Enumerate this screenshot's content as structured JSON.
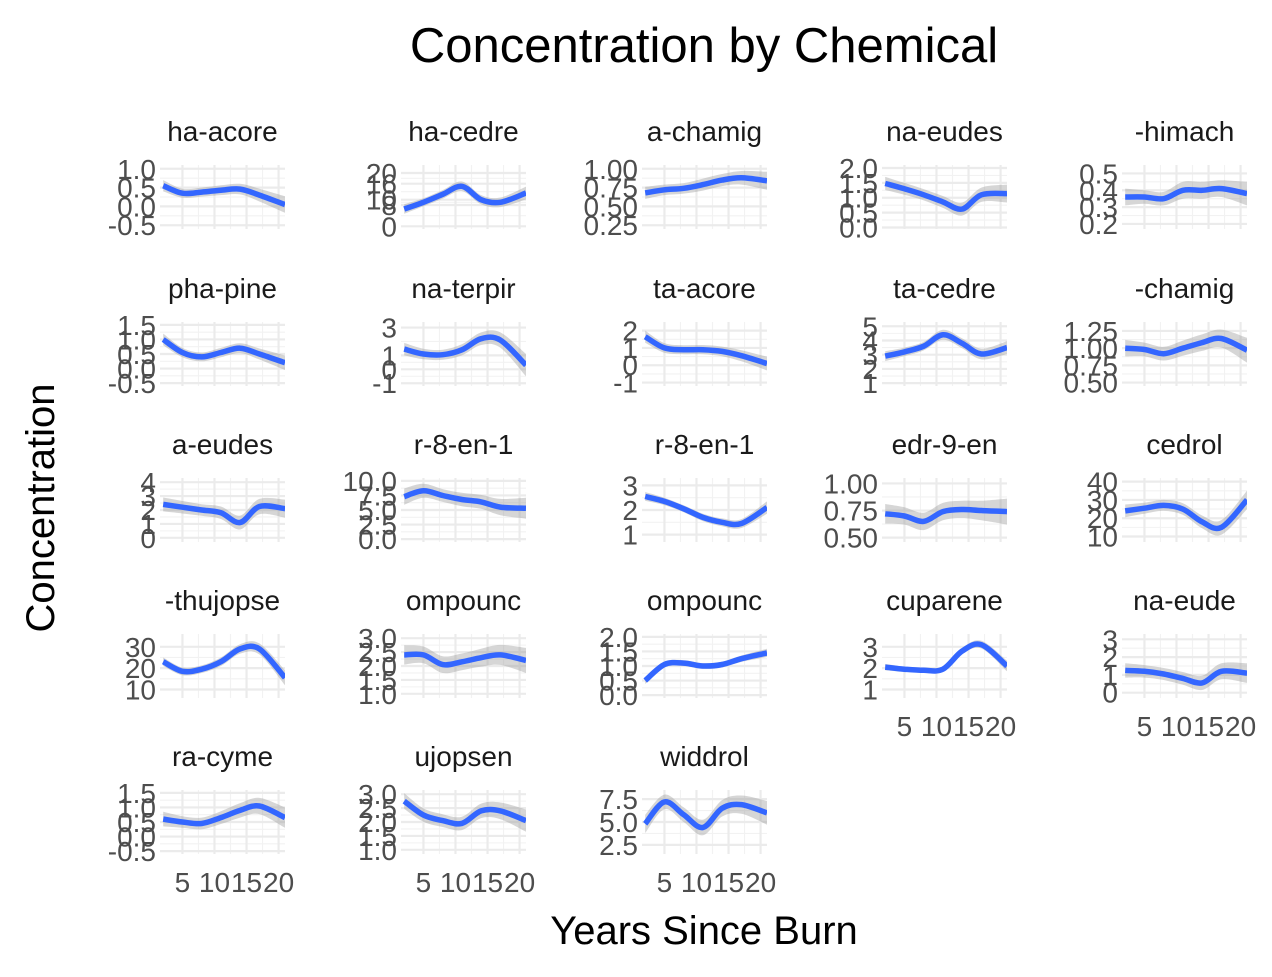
{
  "chart_data": {
    "type": "line",
    "title": "Concentration by Chemical",
    "xlabel": "Years Since Burn",
    "ylabel": "Concentration",
    "xlim": [
      1.5,
      21
    ],
    "x_ticks": [
      5,
      10,
      15,
      20
    ],
    "x_tick_labels": [
      "5",
      "10",
      "15",
      "20"
    ],
    "series_color": "#3366ff",
    "ribbon_color": "#999999",
    "grid": true,
    "panels": [
      {
        "strip": "ha-acore",
        "ylim": [
          -0.6,
          1.1
        ],
        "y_ticks": [
          -0.5,
          0.0,
          0.5,
          1.0
        ],
        "y_tick_labels": [
          "-0.5",
          "0.0",
          "0.5",
          "1.0"
        ],
        "x": [
          2,
          5,
          8,
          11,
          14,
          17,
          21
        ],
        "y": [
          0.55,
          0.35,
          0.38,
          0.43,
          0.46,
          0.3,
          0.05
        ],
        "ci": [
          0.15,
          0.12,
          0.12,
          0.13,
          0.14,
          0.17,
          0.22
        ]
      },
      {
        "strip": "ha-cedre",
        "ylim": [
          -1,
          23
        ],
        "y_ticks": [
          0,
          8,
          10,
          16,
          20
        ],
        "y_tick_labels": [
          "0",
          "8",
          "10",
          "16",
          "20"
        ],
        "x": [
          2,
          5,
          8,
          11,
          14,
          17,
          21
        ],
        "y": [
          6.5,
          9.0,
          12.0,
          15.0,
          10.0,
          9.0,
          12.5
        ],
        "ci": [
          1.8,
          1.5,
          1.6,
          1.8,
          1.7,
          1.8,
          2.4
        ]
      },
      {
        "strip": "a-chamig",
        "ylim": [
          0.2,
          1.05
        ],
        "y_ticks": [
          0.25,
          0.5,
          0.75,
          1.0
        ],
        "y_tick_labels": [
          "0.25",
          "0.50",
          "0.75",
          "1.00"
        ],
        "x": [
          2,
          5,
          8,
          11,
          14,
          17,
          21
        ],
        "y": [
          0.68,
          0.72,
          0.74,
          0.79,
          0.85,
          0.88,
          0.84
        ],
        "ci": [
          0.08,
          0.07,
          0.07,
          0.08,
          0.08,
          0.09,
          0.12
        ]
      },
      {
        "strip": "na-eudes",
        "ylim": [
          -0.05,
          2.1
        ],
        "y_ticks": [
          0.0,
          0.5,
          1.0,
          1.5,
          2.0
        ],
        "y_tick_labels": [
          "0.0",
          "0.5",
          "1.0",
          "1.5",
          "2.0"
        ],
        "x": [
          2,
          5,
          8,
          11,
          14,
          17,
          21
        ],
        "y": [
          1.48,
          1.3,
          1.1,
          0.86,
          0.62,
          1.1,
          1.14
        ],
        "ci": [
          0.22,
          0.2,
          0.19,
          0.2,
          0.22,
          0.24,
          0.3
        ]
      },
      {
        "strip": "-himach",
        "ylim": [
          0.17,
          0.55
        ],
        "y_ticks": [
          0.2,
          0.3,
          0.4,
          0.5
        ],
        "y_tick_labels": [
          "0.2",
          "0.3",
          "0.4",
          "0.5"
        ],
        "x": [
          2,
          5,
          8,
          11,
          14,
          17,
          21
        ],
        "y": [
          0.36,
          0.36,
          0.35,
          0.4,
          0.4,
          0.41,
          0.38
        ],
        "ci": [
          0.05,
          0.04,
          0.04,
          0.05,
          0.05,
          0.05,
          0.07
        ]
      },
      {
        "strip": "pha-pine",
        "ylim": [
          -0.6,
          1.6
        ],
        "y_ticks": [
          -0.5,
          0.0,
          0.5,
          1.0,
          1.5
        ],
        "y_tick_labels": [
          "-0.5",
          "0.0",
          "0.5",
          "1.0",
          "1.5"
        ],
        "x": [
          2,
          5,
          8,
          11,
          14,
          17,
          21
        ],
        "y": [
          1.0,
          0.55,
          0.4,
          0.55,
          0.7,
          0.5,
          0.2
        ],
        "ci": [
          0.2,
          0.16,
          0.15,
          0.16,
          0.17,
          0.19,
          0.25
        ]
      },
      {
        "strip": "na-terpir",
        "ylim": [
          -1.2,
          3.4
        ],
        "y_ticks": [
          -1,
          0,
          1,
          3
        ],
        "y_tick_labels": [
          "-1",
          "0",
          "1",
          "3"
        ],
        "x": [
          2,
          5,
          8,
          11,
          14,
          17,
          21
        ],
        "y": [
          1.45,
          1.1,
          1.05,
          1.4,
          2.2,
          2.1,
          0.3
        ],
        "ci": [
          0.45,
          0.38,
          0.36,
          0.4,
          0.45,
          0.55,
          0.8
        ]
      },
      {
        "strip": "ta-acore",
        "ylim": [
          -1.2,
          2.5
        ],
        "y_ticks": [
          -1,
          0,
          1,
          2
        ],
        "y_tick_labels": [
          "-1",
          "0",
          "1",
          "2"
        ],
        "x": [
          2,
          5,
          8,
          11,
          14,
          17,
          21
        ],
        "y": [
          1.65,
          1.0,
          0.9,
          0.9,
          0.8,
          0.55,
          0.1
        ],
        "ci": [
          0.35,
          0.28,
          0.26,
          0.27,
          0.28,
          0.32,
          0.4
        ]
      },
      {
        "strip": "ta-cedre",
        "ylim": [
          0.8,
          5.3
        ],
        "y_ticks": [
          1,
          2,
          3,
          4,
          5
        ],
        "y_tick_labels": [
          "1",
          "2",
          "3",
          "4",
          "5"
        ],
        "x": [
          2,
          5,
          8,
          11,
          14,
          17,
          21
        ],
        "y": [
          2.9,
          3.2,
          3.6,
          4.4,
          3.8,
          3.05,
          3.5
        ],
        "ci": [
          0.35,
          0.3,
          0.3,
          0.35,
          0.35,
          0.38,
          0.45
        ]
      },
      {
        "strip": "-chamig",
        "ylim": [
          0.45,
          1.38
        ],
        "y_ticks": [
          0.5,
          0.75,
          1.0,
          1.25
        ],
        "y_tick_labels": [
          "0.50",
          "0.75",
          "1.00",
          "1.25"
        ],
        "x": [
          2,
          5,
          8,
          11,
          14,
          17,
          21
        ],
        "y": [
          1.0,
          0.98,
          0.92,
          1.0,
          1.08,
          1.14,
          0.97
        ],
        "ci": [
          0.12,
          0.1,
          0.1,
          0.11,
          0.12,
          0.13,
          0.18
        ]
      },
      {
        "strip": "a-eudes",
        "ylim": [
          -0.3,
          4.3
        ],
        "y_ticks": [
          0,
          1,
          2,
          3,
          4
        ],
        "y_tick_labels": [
          "0",
          "1",
          "2",
          "3",
          "4"
        ],
        "x": [
          2,
          5,
          8,
          11,
          14,
          17,
          21
        ],
        "y": [
          2.4,
          2.2,
          2.0,
          1.8,
          1.1,
          2.25,
          2.1
        ],
        "ci": [
          0.5,
          0.45,
          0.42,
          0.45,
          0.5,
          0.55,
          0.65
        ]
      },
      {
        "strip": "r-8-en-1",
        "ylim": [
          -0.5,
          10.5
        ],
        "y_ticks": [
          0.0,
          2.5,
          5.0,
          7.5,
          10.0
        ],
        "y_tick_labels": [
          "0.0",
          "2.5",
          "5.0",
          "7.5",
          "10.0"
        ],
        "x": [
          2,
          5,
          8,
          11,
          14,
          17,
          21
        ],
        "y": [
          7.3,
          8.3,
          7.5,
          6.8,
          6.4,
          5.5,
          5.3
        ],
        "ci": [
          1.4,
          1.2,
          1.1,
          1.15,
          1.2,
          1.4,
          1.8
        ]
      },
      {
        "strip": "r-8-en-1",
        "ylim": [
          0.7,
          3.3
        ],
        "y_ticks": [
          1,
          2,
          3
        ],
        "y_tick_labels": [
          "1",
          "2",
          "3"
        ],
        "x": [
          2,
          5,
          8,
          11,
          14,
          17,
          21
        ],
        "y": [
          2.55,
          2.35,
          2.05,
          1.7,
          1.5,
          1.45,
          2.1
        ],
        "ci": [
          0.18,
          0.15,
          0.14,
          0.15,
          0.16,
          0.18,
          0.25
        ]
      },
      {
        "strip": "edr-9-en",
        "ylim": [
          0.46,
          1.05
        ],
        "y_ticks": [
          0.5,
          0.75,
          1.0
        ],
        "y_tick_labels": [
          "0.50",
          "0.75",
          "1.00"
        ],
        "x": [
          2,
          5,
          8,
          11,
          14,
          17,
          21
        ],
        "y": [
          0.72,
          0.7,
          0.65,
          0.74,
          0.76,
          0.75,
          0.74
        ],
        "ci": [
          0.09,
          0.08,
          0.08,
          0.08,
          0.08,
          0.09,
          0.12
        ]
      },
      {
        "strip": "cedrol",
        "ylim": [
          7,
          42
        ],
        "y_ticks": [
          10,
          20,
          30,
          40
        ],
        "y_tick_labels": [
          "10",
          "20",
          "30",
          "40"
        ],
        "x": [
          2,
          5,
          8,
          11,
          14,
          17,
          21
        ],
        "y": [
          24.0,
          25.5,
          27.0,
          25.0,
          18.0,
          15.0,
          30.0
        ],
        "ci": [
          3.5,
          3.0,
          3.0,
          3.2,
          3.5,
          4.0,
          5.0
        ]
      },
      {
        "strip": "-thujopse",
        "ylim": [
          6,
          36
        ],
        "y_ticks": [
          10,
          20,
          30
        ],
        "y_tick_labels": [
          "10",
          "20",
          "30"
        ],
        "x": [
          2,
          5,
          8,
          11,
          14,
          17,
          21
        ],
        "y": [
          23.0,
          18.5,
          19.5,
          23.0,
          29.0,
          29.0,
          15.5
        ],
        "ci": [
          2.0,
          1.8,
          1.8,
          2.0,
          2.2,
          2.6,
          3.5
        ]
      },
      {
        "strip": "ompounc",
        "ylim": [
          0.85,
          3.15
        ],
        "y_ticks": [
          1.0,
          1.5,
          2.0,
          2.5,
          3.0
        ],
        "y_tick_labels": [
          "1.0",
          "1.5",
          "2.0",
          "2.5",
          "3.0"
        ],
        "x": [
          2,
          5,
          8,
          11,
          14,
          17,
          21
        ],
        "y": [
          2.4,
          2.4,
          2.05,
          2.15,
          2.3,
          2.4,
          2.2
        ],
        "ci": [
          0.35,
          0.3,
          0.3,
          0.3,
          0.32,
          0.36,
          0.45
        ]
      },
      {
        "strip": "ompounc",
        "ylim": [
          -0.1,
          2.1
        ],
        "y_ticks": [
          0.0,
          0.5,
          1.0,
          1.5,
          2.0
        ],
        "y_tick_labels": [
          "0.0",
          "0.5",
          "1.0",
          "1.5",
          "2.0"
        ],
        "x": [
          2,
          5,
          8,
          11,
          14,
          17,
          21
        ],
        "y": [
          0.5,
          1.05,
          1.1,
          1.0,
          1.05,
          1.25,
          1.45
        ],
        "ci": [
          0.12,
          0.1,
          0.1,
          0.1,
          0.1,
          0.11,
          0.14
        ]
      },
      {
        "strip": "cuparene",
        "ylim": [
          0.6,
          3.6
        ],
        "y_ticks": [
          1,
          2,
          3
        ],
        "y_tick_labels": [
          "1",
          "2",
          "3"
        ],
        "x": [
          2,
          5,
          8,
          11,
          14,
          17,
          21
        ],
        "y": [
          2.05,
          1.95,
          1.9,
          1.95,
          2.8,
          3.1,
          2.1
        ],
        "ci": [
          0.15,
          0.12,
          0.12,
          0.13,
          0.15,
          0.18,
          0.25
        ]
      },
      {
        "strip": "na-eude",
        "ylim": [
          -0.3,
          3.3
        ],
        "y_ticks": [
          0,
          1,
          2,
          3
        ],
        "y_tick_labels": [
          "0",
          "1",
          "2",
          "3"
        ],
        "x": [
          2,
          5,
          8,
          11,
          14,
          17,
          21
        ],
        "y": [
          1.25,
          1.2,
          1.05,
          0.8,
          0.55,
          1.2,
          1.1
        ],
        "ci": [
          0.4,
          0.35,
          0.34,
          0.36,
          0.4,
          0.45,
          0.55
        ]
      },
      {
        "strip": "ra-cyme",
        "ylim": [
          -0.6,
          1.6
        ],
        "y_ticks": [
          -0.5,
          0.0,
          0.5,
          1.0,
          1.5
        ],
        "y_tick_labels": [
          "-0.5",
          "0.0",
          "0.5",
          "1.0",
          "1.5"
        ],
        "x": [
          2,
          5,
          8,
          11,
          14,
          17,
          21
        ],
        "y": [
          0.6,
          0.5,
          0.45,
          0.65,
          0.9,
          1.05,
          0.65
        ],
        "ci": [
          0.25,
          0.2,
          0.2,
          0.22,
          0.25,
          0.28,
          0.35
        ]
      },
      {
        "strip": "ujopsen",
        "ylim": [
          0.85,
          3.15
        ],
        "y_ticks": [
          1.0,
          1.5,
          2.0,
          2.5,
          3.0
        ],
        "y_tick_labels": [
          "1.0",
          "1.5",
          "2.0",
          "2.5",
          "3.0"
        ],
        "x": [
          2,
          5,
          8,
          11,
          14,
          17,
          21
        ],
        "y": [
          2.75,
          2.25,
          2.05,
          1.95,
          2.4,
          2.4,
          2.05
        ],
        "ci": [
          0.28,
          0.24,
          0.23,
          0.24,
          0.26,
          0.3,
          0.4
        ]
      },
      {
        "strip": "widdrol",
        "ylim": [
          1.5,
          8.5
        ],
        "y_ticks": [
          2.5,
          5.0,
          7.5
        ],
        "y_tick_labels": [
          "2.5",
          "5.0",
          "7.5"
        ],
        "x": [
          2,
          5,
          8,
          11,
          14,
          17,
          21
        ],
        "y": [
          4.8,
          7.2,
          5.8,
          4.4,
          6.5,
          6.9,
          6.0
        ],
        "ci": [
          1.0,
          0.8,
          0.8,
          0.85,
          0.9,
          1.0,
          1.3
        ]
      }
    ]
  }
}
